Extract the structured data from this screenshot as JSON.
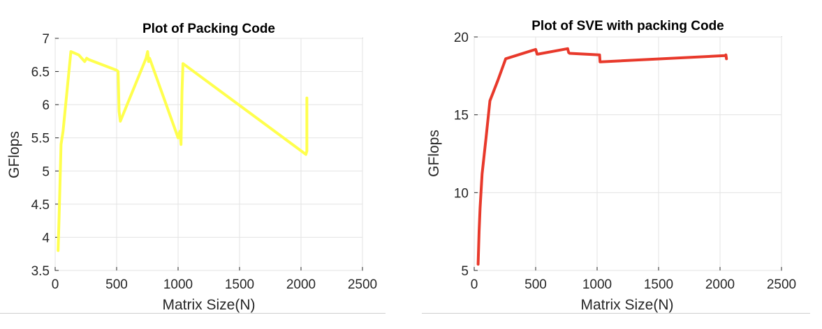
{
  "chart_data": [
    {
      "type": "line",
      "title": "Plot of Packing Code",
      "xlabel": "Matrix Size(N)",
      "ylabel": "GFlops",
      "xlim": [
        0,
        2500
      ],
      "ylim": [
        3.5,
        7
      ],
      "xticks": [
        0,
        500,
        1000,
        1500,
        2000,
        2500
      ],
      "xtick_labels": [
        "0",
        "500",
        "1000",
        "1500",
        "2000",
        "2500"
      ],
      "yticks": [
        3.5,
        4,
        4.5,
        5,
        5.5,
        6,
        6.5,
        7
      ],
      "ytick_labels": [
        "3.5",
        "4",
        "4.5",
        "5",
        "5.5",
        "6",
        "6.5",
        "7"
      ],
      "grid": true,
      "color": "#ffff4d",
      "series": [
        {
          "name": "Packing Code",
          "x": [
            24,
            32,
            48,
            64,
            128,
            192,
            240,
            256,
            272,
            500,
            512,
            520,
            530,
            740,
            752,
            760,
            768,
            1000,
            1016,
            1024,
            1032,
            1040,
            2040,
            2048,
            2048
          ],
          "y": [
            3.8,
            4.3,
            5.4,
            5.6,
            6.8,
            6.75,
            6.65,
            6.7,
            6.68,
            6.52,
            6.5,
            5.9,
            5.75,
            6.7,
            6.8,
            6.65,
            6.7,
            5.5,
            5.6,
            5.4,
            6.2,
            6.62,
            5.25,
            5.3,
            6.1
          ]
        }
      ]
    },
    {
      "type": "line",
      "title": "Plot of SVE with packing Code",
      "xlabel": "Matrix Size(N)",
      "ylabel": "GFlops",
      "xlim": [
        0,
        2500
      ],
      "ylim": [
        5,
        20
      ],
      "xticks": [
        0,
        500,
        1000,
        1500,
        2000,
        2500
      ],
      "xtick_labels": [
        "0",
        "500",
        "1000",
        "1500",
        "2000",
        "2500"
      ],
      "yticks": [
        5,
        10,
        15,
        20
      ],
      "ytick_labels": [
        "5",
        "10",
        "15",
        "20"
      ],
      "grid": true,
      "color": "#e8392b",
      "series": [
        {
          "name": "SVE with packing",
          "x": [
            32,
            40,
            48,
            64,
            96,
            128,
            192,
            256,
            500,
            512,
            520,
            760,
            768,
            776,
            1020,
            1024,
            1028,
            2040,
            2048,
            2052
          ],
          "y": [
            5.4,
            7.5,
            9.0,
            11.2,
            13.5,
            15.9,
            17.2,
            18.6,
            19.2,
            18.9,
            18.9,
            19.25,
            19.0,
            18.95,
            18.85,
            18.4,
            18.4,
            18.8,
            18.85,
            18.6
          ]
        }
      ]
    }
  ]
}
